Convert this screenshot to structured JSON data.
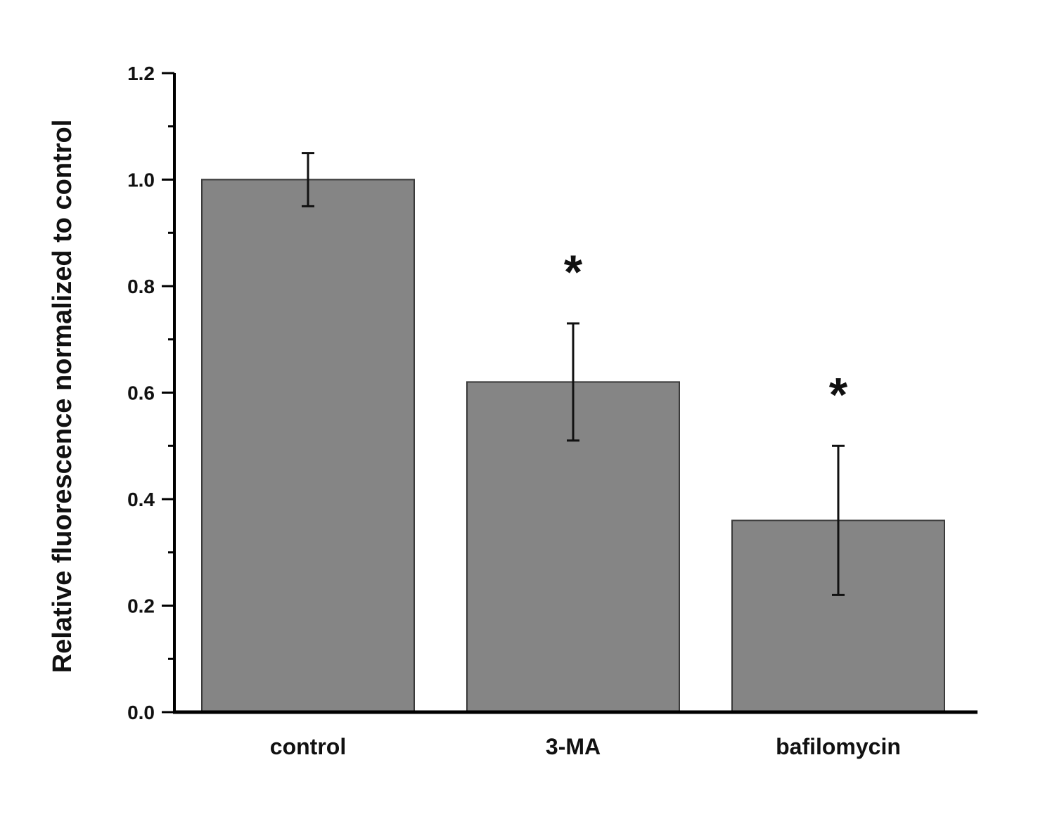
{
  "chart_data": {
    "type": "bar",
    "title": "",
    "xlabel": "",
    "ylabel": "Relative fluorescence normalized to control",
    "categories": [
      "control",
      "3-MA",
      "bafilomycin"
    ],
    "values": [
      1.0,
      0.62,
      0.36
    ],
    "error_upper": [
      1.05,
      0.73,
      0.5
    ],
    "error_lower": [
      0.95,
      0.51,
      0.22
    ],
    "annotations": [
      "",
      "*",
      "*"
    ],
    "ylim": [
      0,
      1.2
    ],
    "y_ticks": [
      "0.0",
      "0.2",
      "0.4",
      "0.6",
      "0.8",
      "1.0",
      "1.2"
    ],
    "grid": false,
    "legend": "none",
    "colors": {
      "bar_fill": "#858585",
      "bar_stroke": "#3a3a3a",
      "axis": "#000000",
      "text": "#111111"
    }
  }
}
